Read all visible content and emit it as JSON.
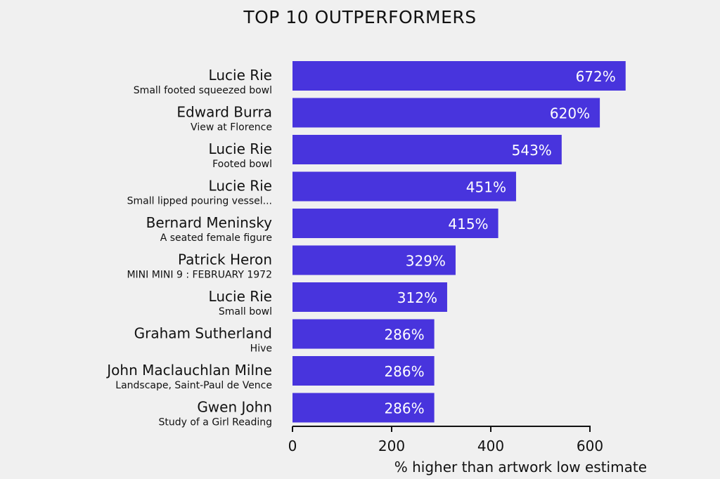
{
  "chart_data": {
    "type": "bar",
    "orientation": "horizontal",
    "title": "TOP 10 OUTPERFORMERS",
    "xlabel": "% higher than artwork low estimate",
    "ylabel": "",
    "xlim": [
      0,
      672
    ],
    "xticks": [
      0,
      200,
      400,
      600
    ],
    "bar_color": "#4834dd",
    "grid": false,
    "items": [
      {
        "artist": "Lucie Rie",
        "work": "Small footed squeezed bowl",
        "value": 672,
        "label": "672%"
      },
      {
        "artist": "Edward Burra",
        "work": "View at Florence",
        "value": 620,
        "label": "620%"
      },
      {
        "artist": "Lucie Rie",
        "work": "Footed bowl",
        "value": 543,
        "label": "543%"
      },
      {
        "artist": "Lucie Rie",
        "work": "Small lipped pouring vessel...",
        "value": 451,
        "label": "451%"
      },
      {
        "artist": "Bernard Meninsky",
        "work": "A seated female figure",
        "value": 415,
        "label": "415%"
      },
      {
        "artist": "Patrick Heron",
        "work": "MINI MINI 9 : FEBRUARY 1972",
        "value": 329,
        "label": "329%"
      },
      {
        "artist": "Lucie Rie",
        "work": "Small bowl",
        "value": 312,
        "label": "312%"
      },
      {
        "artist": "Graham Sutherland",
        "work": "Hive",
        "value": 286,
        "label": "286%"
      },
      {
        "artist": "John Maclauchlan Milne",
        "work": "Landscape, Saint-Paul de Vence",
        "value": 286,
        "label": "286%"
      },
      {
        "artist": "Gwen John",
        "work": "Study of a Girl Reading",
        "value": 286,
        "label": "286%"
      }
    ]
  }
}
